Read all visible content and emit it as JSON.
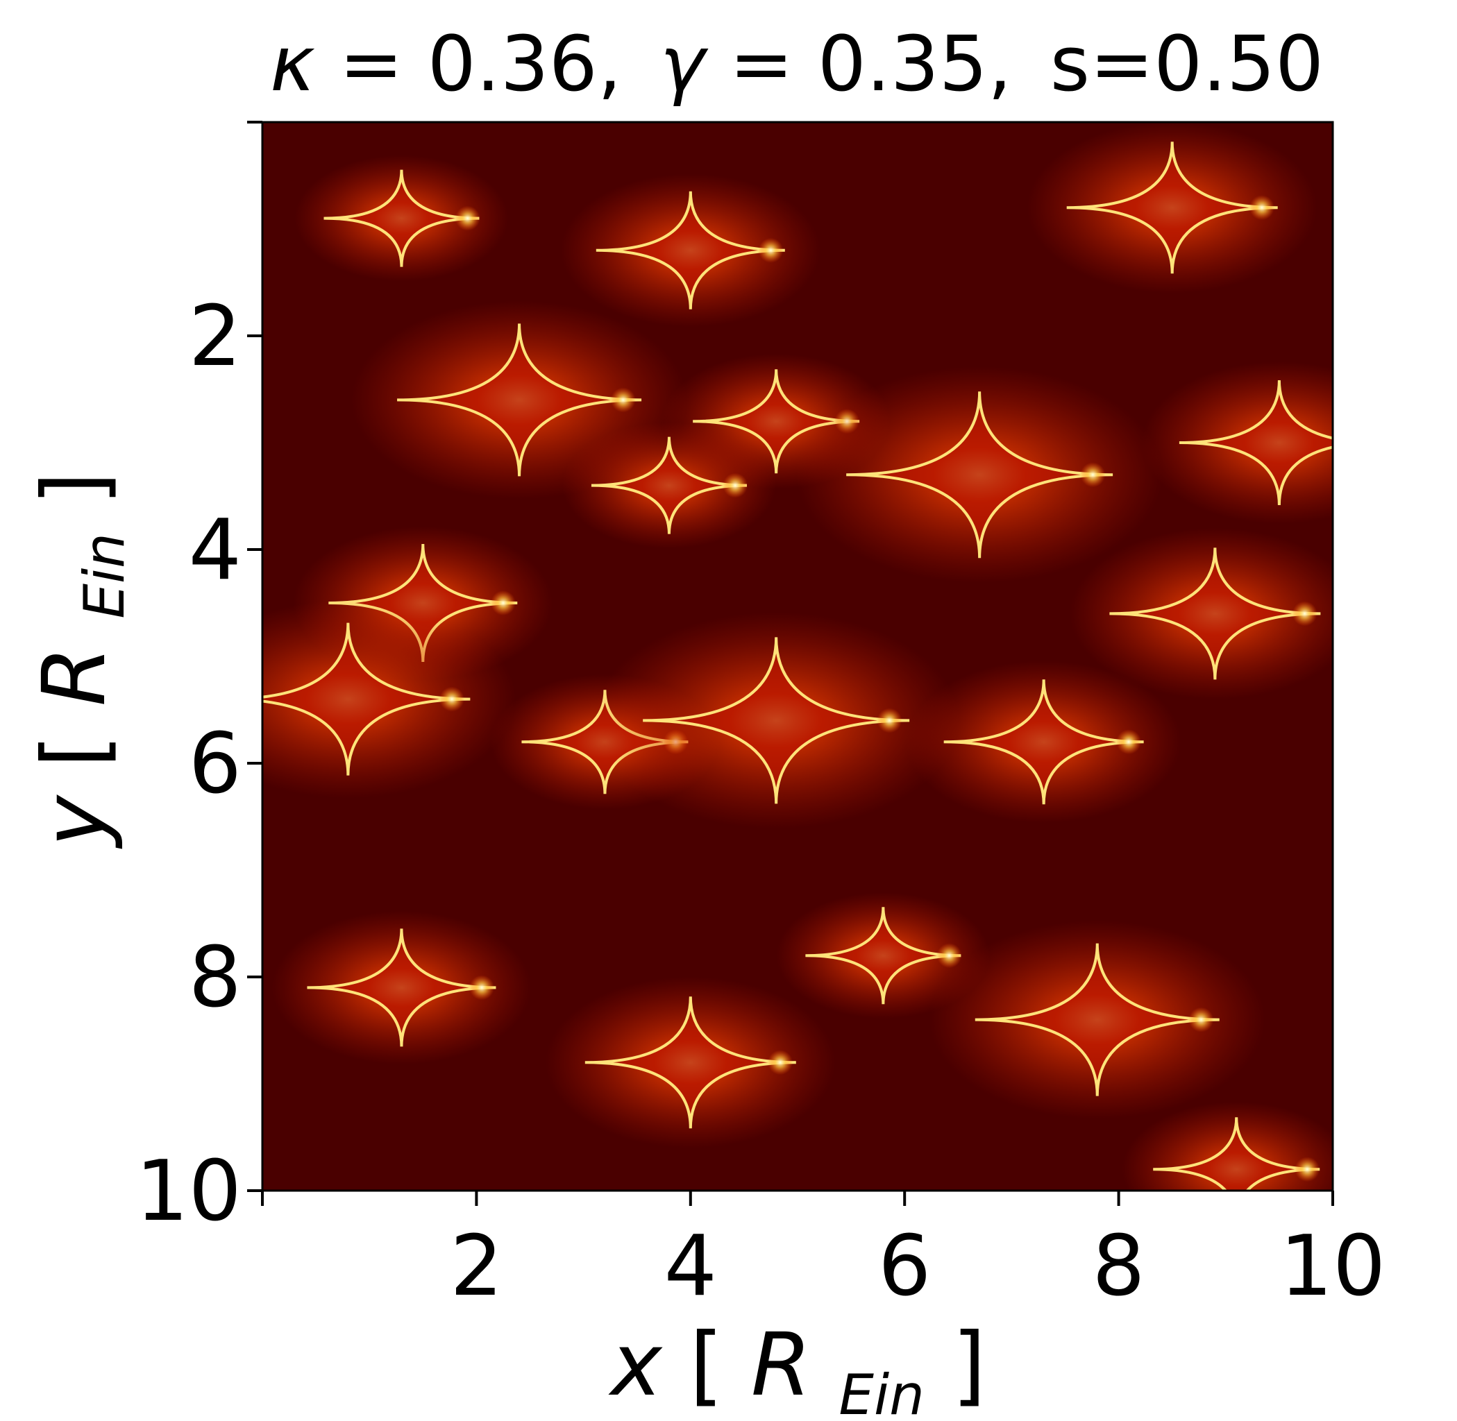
{
  "colors": {
    "background": "#4a0000",
    "glow": "#b81500",
    "caustic_line": "#ffe37a",
    "hotspot": "#ffffcc",
    "colormap": "hot"
  },
  "chart_data": {
    "type": "heatmap",
    "title_parts": {
      "kappa_symbol": "κ",
      "kappa_value": "0.36,",
      "gamma_symbol": "γ",
      "gamma_value": "0.35,",
      "s_text": "s=0.50",
      "equals": "="
    },
    "title": "κ = 0.36, γ = 0.35, s=0.50",
    "xlabel": "x[R_Ein]",
    "ylabel": "y[R_Ein]",
    "xlabel_parts": {
      "var": "x",
      "open": "[",
      "R": "R",
      "sub": "Ein",
      "close": "]"
    },
    "ylabel_parts": {
      "var": "y",
      "open": "[",
      "R": "R",
      "sub": "Ein",
      "close": "]"
    },
    "xlim": [
      0,
      10
    ],
    "ylim": [
      10,
      0
    ],
    "y_inverted": true,
    "xticks": [
      0,
      2,
      4,
      6,
      8,
      10
    ],
    "xtick_labels": [
      "",
      "2",
      "4",
      "6",
      "8",
      "10"
    ],
    "yticks": [
      0,
      2,
      4,
      6,
      8,
      10
    ],
    "ytick_labels": [
      "",
      "2",
      "4",
      "6",
      "8",
      "10"
    ],
    "grid": false,
    "legend": "none",
    "caustic_cusps": [
      {
        "x": 1.3,
        "y": 0.9
      },
      {
        "x": 4.0,
        "y": 1.2
      },
      {
        "x": 8.5,
        "y": 0.8
      },
      {
        "x": 2.4,
        "y": 2.6
      },
      {
        "x": 4.8,
        "y": 2.8
      },
      {
        "x": 6.7,
        "y": 3.3
      },
      {
        "x": 9.5,
        "y": 3.0
      },
      {
        "x": 3.8,
        "y": 3.4
      },
      {
        "x": 1.5,
        "y": 4.5
      },
      {
        "x": 8.9,
        "y": 4.6
      },
      {
        "x": 0.8,
        "y": 5.4
      },
      {
        "x": 3.2,
        "y": 5.8
      },
      {
        "x": 4.8,
        "y": 5.6
      },
      {
        "x": 7.3,
        "y": 5.8
      },
      {
        "x": 5.8,
        "y": 7.8
      },
      {
        "x": 1.3,
        "y": 8.1
      },
      {
        "x": 4.0,
        "y": 8.8
      },
      {
        "x": 7.8,
        "y": 8.4
      },
      {
        "x": 9.1,
        "y": 9.8
      }
    ]
  }
}
